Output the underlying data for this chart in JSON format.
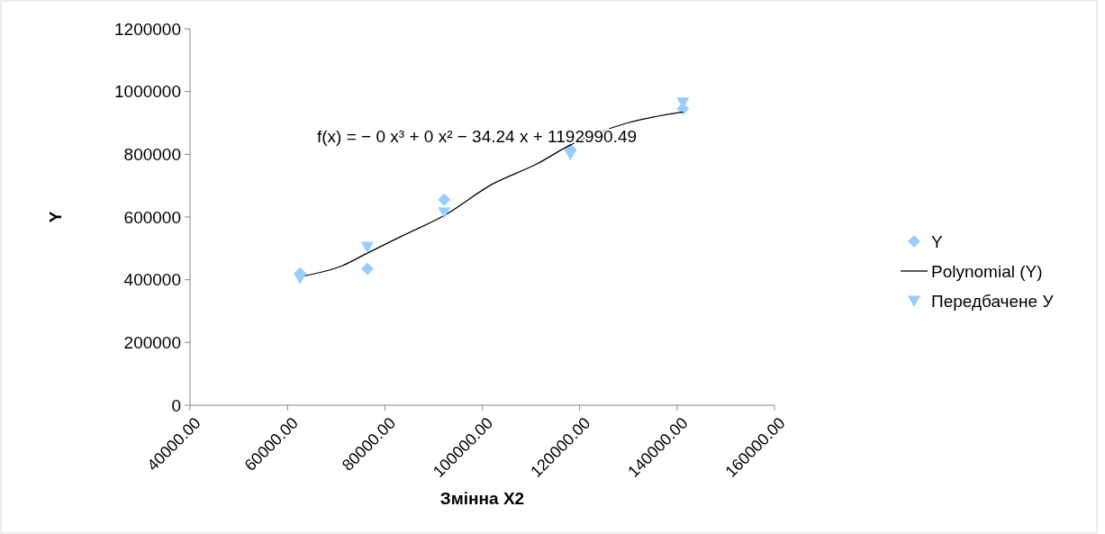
{
  "chart_data": {
    "type": "scatter",
    "xlabel": "Змінна X2",
    "ylabel": "Y",
    "xlim": [
      40000,
      160000
    ],
    "xticks": [
      {
        "value": 40000,
        "label": "40000.00"
      },
      {
        "value": 60000,
        "label": "60000.00"
      },
      {
        "value": 80000,
        "label": "80000.00"
      },
      {
        "value": 100000,
        "label": "100000.00"
      },
      {
        "value": 120000,
        "label": "120000.00"
      },
      {
        "value": 140000,
        "label": "140000.00"
      },
      {
        "value": 160000,
        "label": "160000.00"
      }
    ],
    "ylim": [
      0,
      1200000
    ],
    "yticks": [
      0,
      200000,
      400000,
      600000,
      800000,
      1000000,
      1200000
    ],
    "grid": false,
    "legend": "right",
    "annotations": [
      "f(x) = − 0 x³ + 0 x² − 34.24 x + 1192990.49"
    ],
    "series": [
      {
        "name": "Y",
        "marker": "diamond",
        "color": "#99ccff",
        "x": [
          62600,
          76400,
          92200,
          118100,
          141200
        ],
        "values": [
          420000,
          435000,
          655000,
          815000,
          945000
        ]
      },
      {
        "name": "Polynomial (Y)",
        "type": "line",
        "marker": "none",
        "color": "#000000",
        "x": [
          62600,
          71300,
          76400,
          83600,
          92200,
          102100,
          111300,
          118100,
          129800,
          141200
        ],
        "values": [
          410000,
          445000,
          485000,
          540000,
          605000,
          705000,
          770000,
          830000,
          900000,
          935000
        ]
      },
      {
        "name": "Передбачене У",
        "marker": "triangle",
        "color": "#99ccff",
        "x": [
          62600,
          76400,
          92200,
          118100,
          141200
        ],
        "values": [
          405000,
          505000,
          615000,
          800000,
          965000
        ]
      }
    ]
  }
}
